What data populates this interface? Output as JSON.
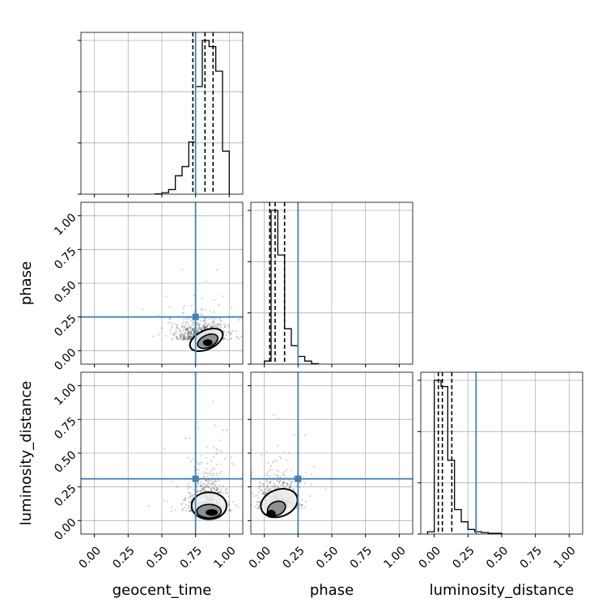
{
  "chart_data": {
    "type": "corner",
    "parameters": [
      "geocent_time",
      "phase",
      "luminosity_distance"
    ],
    "axis_range": [
      -0.1,
      1.1
    ],
    "ticks": [
      0.0,
      0.25,
      0.5,
      0.75,
      1.0
    ],
    "tick_labels": [
      "0.00",
      "0.25",
      "0.50",
      "0.75",
      "1.00"
    ],
    "grid": true,
    "truths": {
      "geocent_time": 0.75,
      "phase": 0.25,
      "luminosity_distance": 0.31
    },
    "truth_color": "#4682b4",
    "line_color": "#000000",
    "histograms": [
      {
        "parameter": "geocent_time",
        "bin_edges": [
          0.45,
          0.5,
          0.55,
          0.6,
          0.65,
          0.7,
          0.75,
          0.8,
          0.85,
          0.9,
          0.95,
          1.0
        ],
        "counts": [
          0.2,
          1.0,
          3.0,
          12.0,
          18.0,
          34.0,
          70.0,
          100.0,
          96.0,
          80.0,
          28.0
        ],
        "quantiles": [
          0.73,
          0.82,
          0.88
        ]
      },
      {
        "parameter": "phase",
        "bin_edges": [
          0.0,
          0.05,
          0.1,
          0.15,
          0.2,
          0.25,
          0.3,
          0.35,
          0.4
        ],
        "counts": [
          2.0,
          100.0,
          71.0,
          23.0,
          12.0,
          5.0,
          2.0,
          0.3
        ],
        "quantiles": [
          0.04,
          0.08,
          0.15
        ]
      },
      {
        "parameter": "luminosity_distance",
        "bin_edges": [
          -0.05,
          0.0,
          0.05,
          0.1,
          0.15,
          0.2,
          0.25,
          0.3,
          0.35,
          0.4,
          0.5
        ],
        "counts": [
          1.5,
          100.0,
          96.0,
          48.0,
          16.0,
          8.0,
          3.0,
          1.5,
          1.0,
          0.5
        ],
        "quantiles": [
          0.03,
          0.06,
          0.13
        ]
      }
    ],
    "scatter_panels": [
      {
        "x_param": "geocent_time",
        "y_param": "phase",
        "center": [
          0.8,
          0.1
        ],
        "spread": [
          0.09,
          0.07
        ],
        "contours": [
          {
            "center": [
              0.83,
              0.08
            ],
            "radii": [
              0.13,
              0.07
            ],
            "rotation": -25,
            "fill": "#f0f0f0"
          },
          {
            "center": [
              0.84,
              0.07
            ],
            "radii": [
              0.08,
              0.045
            ],
            "rotation": -25,
            "fill": "#909090"
          },
          {
            "center": [
              0.84,
              0.06
            ],
            "radii": [
              0.03,
              0.02
            ],
            "rotation": 0,
            "fill": "#000000"
          }
        ]
      },
      {
        "x_param": "geocent_time",
        "y_param": "luminosity_distance",
        "center": [
          0.84,
          0.1
        ],
        "spread": [
          0.07,
          0.11
        ],
        "contours": [
          {
            "center": [
              0.85,
              0.11
            ],
            "radii": [
              0.13,
              0.1
            ],
            "rotation": 0,
            "fill": "#f0f0f0"
          },
          {
            "center": [
              0.85,
              0.07
            ],
            "radii": [
              0.09,
              0.05
            ],
            "rotation": 0,
            "fill": "#909090"
          },
          {
            "center": [
              0.87,
              0.06
            ],
            "radii": [
              0.04,
              0.02
            ],
            "rotation": 0,
            "fill": "#000000"
          }
        ]
      },
      {
        "x_param": "phase",
        "y_param": "luminosity_distance",
        "center": [
          0.1,
          0.12
        ],
        "spread": [
          0.07,
          0.1
        ],
        "contours": [
          {
            "center": [
              0.11,
              0.13
            ],
            "radii": [
              0.14,
              0.1
            ],
            "rotation": -20,
            "fill": "#f0f0f0"
          },
          {
            "center": [
              0.09,
              0.09
            ],
            "radii": [
              0.07,
              0.05
            ],
            "rotation": -25,
            "fill": "#909090"
          },
          {
            "center": [
              0.05,
              0.05
            ],
            "radii": [
              0.03,
              0.025
            ],
            "rotation": 0,
            "fill": "#000000"
          }
        ]
      }
    ]
  }
}
